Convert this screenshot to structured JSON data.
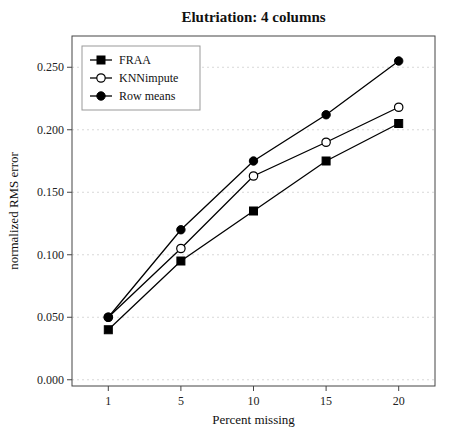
{
  "chart_data": {
    "type": "line",
    "title": "Elutriation: 4 columns",
    "x_label": "Percent missing",
    "y_label": "normalized RMS error",
    "categories": [
      "1",
      "5",
      "10",
      "15",
      "20"
    ],
    "series": [
      {
        "name": "FRAA",
        "color": "black",
        "marker": "square",
        "values": [
          0.04,
          0.095,
          0.135,
          0.175,
          0.205
        ]
      },
      {
        "name": "KNNimpute",
        "color": "black",
        "marker": "circle-open",
        "values": [
          0.05,
          0.105,
          0.163,
          0.19,
          0.218
        ]
      },
      {
        "name": "Row means",
        "color": "black",
        "marker": "circle",
        "values": [
          0.05,
          0.12,
          0.175,
          0.212,
          0.255
        ]
      }
    ],
    "ylim": [
      -0.005,
      0.275
    ],
    "yticks": [
      {
        "value": 0.0,
        "label": "0.000"
      },
      {
        "value": 0.05,
        "label": "0.050"
      },
      {
        "value": 0.1,
        "label": "0.100"
      },
      {
        "value": 0.15,
        "label": "0.150"
      },
      {
        "value": 0.2,
        "label": "0.200"
      },
      {
        "value": 0.25,
        "label": "0.250"
      }
    ],
    "grid": true,
    "legend": "upper-left"
  }
}
